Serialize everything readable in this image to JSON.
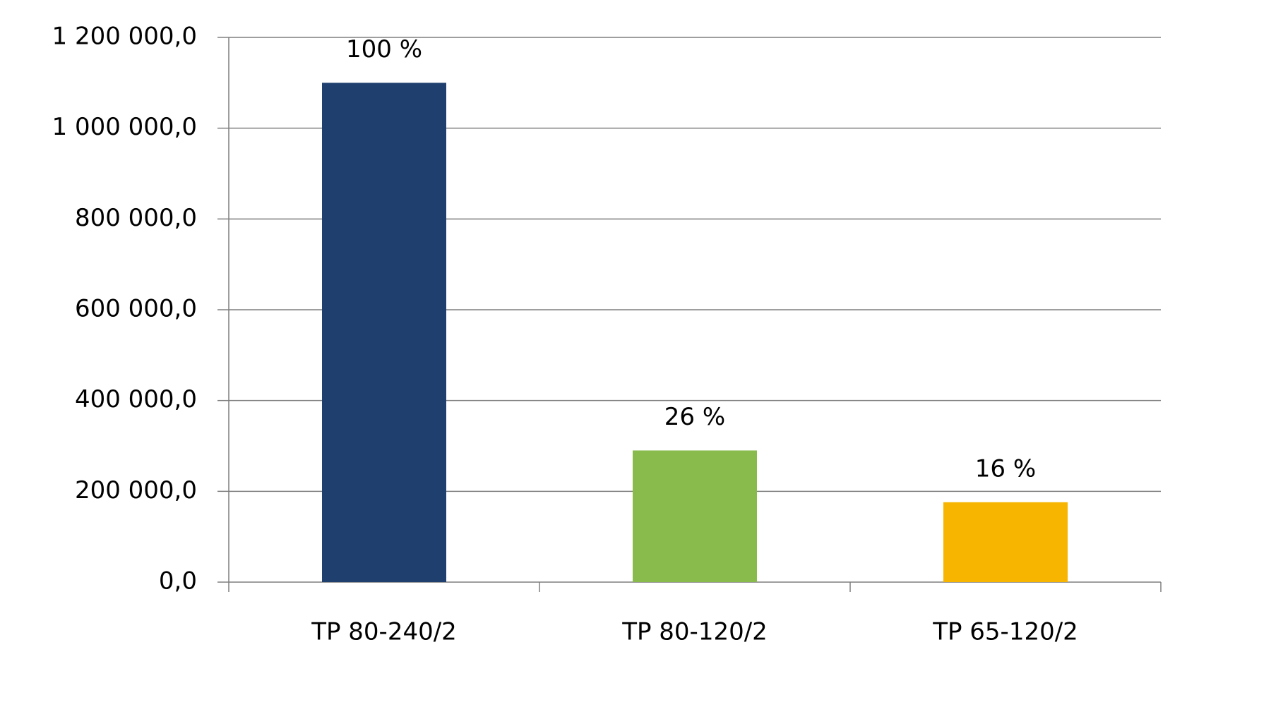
{
  "chart_data": {
    "type": "bar",
    "categories": [
      "TP 80-240/2",
      "TP 80-120/2",
      "TP 65-120/2"
    ],
    "values": [
      1100000,
      290000,
      176000
    ],
    "colors": [
      "#1f3f6e",
      "#88bb4c",
      "#f7b500"
    ],
    "percent_labels": [
      "100 %",
      "26 %",
      "16 %"
    ],
    "ylim": [
      0,
      1200000
    ],
    "yticks": [
      {
        "value": 0,
        "label": "0,0"
      },
      {
        "value": 200000,
        "label": "200 000,0"
      },
      {
        "value": 400000,
        "label": "400 000,0"
      },
      {
        "value": 600000,
        "label": "600 000,0"
      },
      {
        "value": 800000,
        "label": "800 000,0"
      },
      {
        "value": 1000000,
        "label": "1 000 000,0"
      },
      {
        "value": 1200000,
        "label": "1 200 000,0"
      }
    ],
    "grid": true
  }
}
